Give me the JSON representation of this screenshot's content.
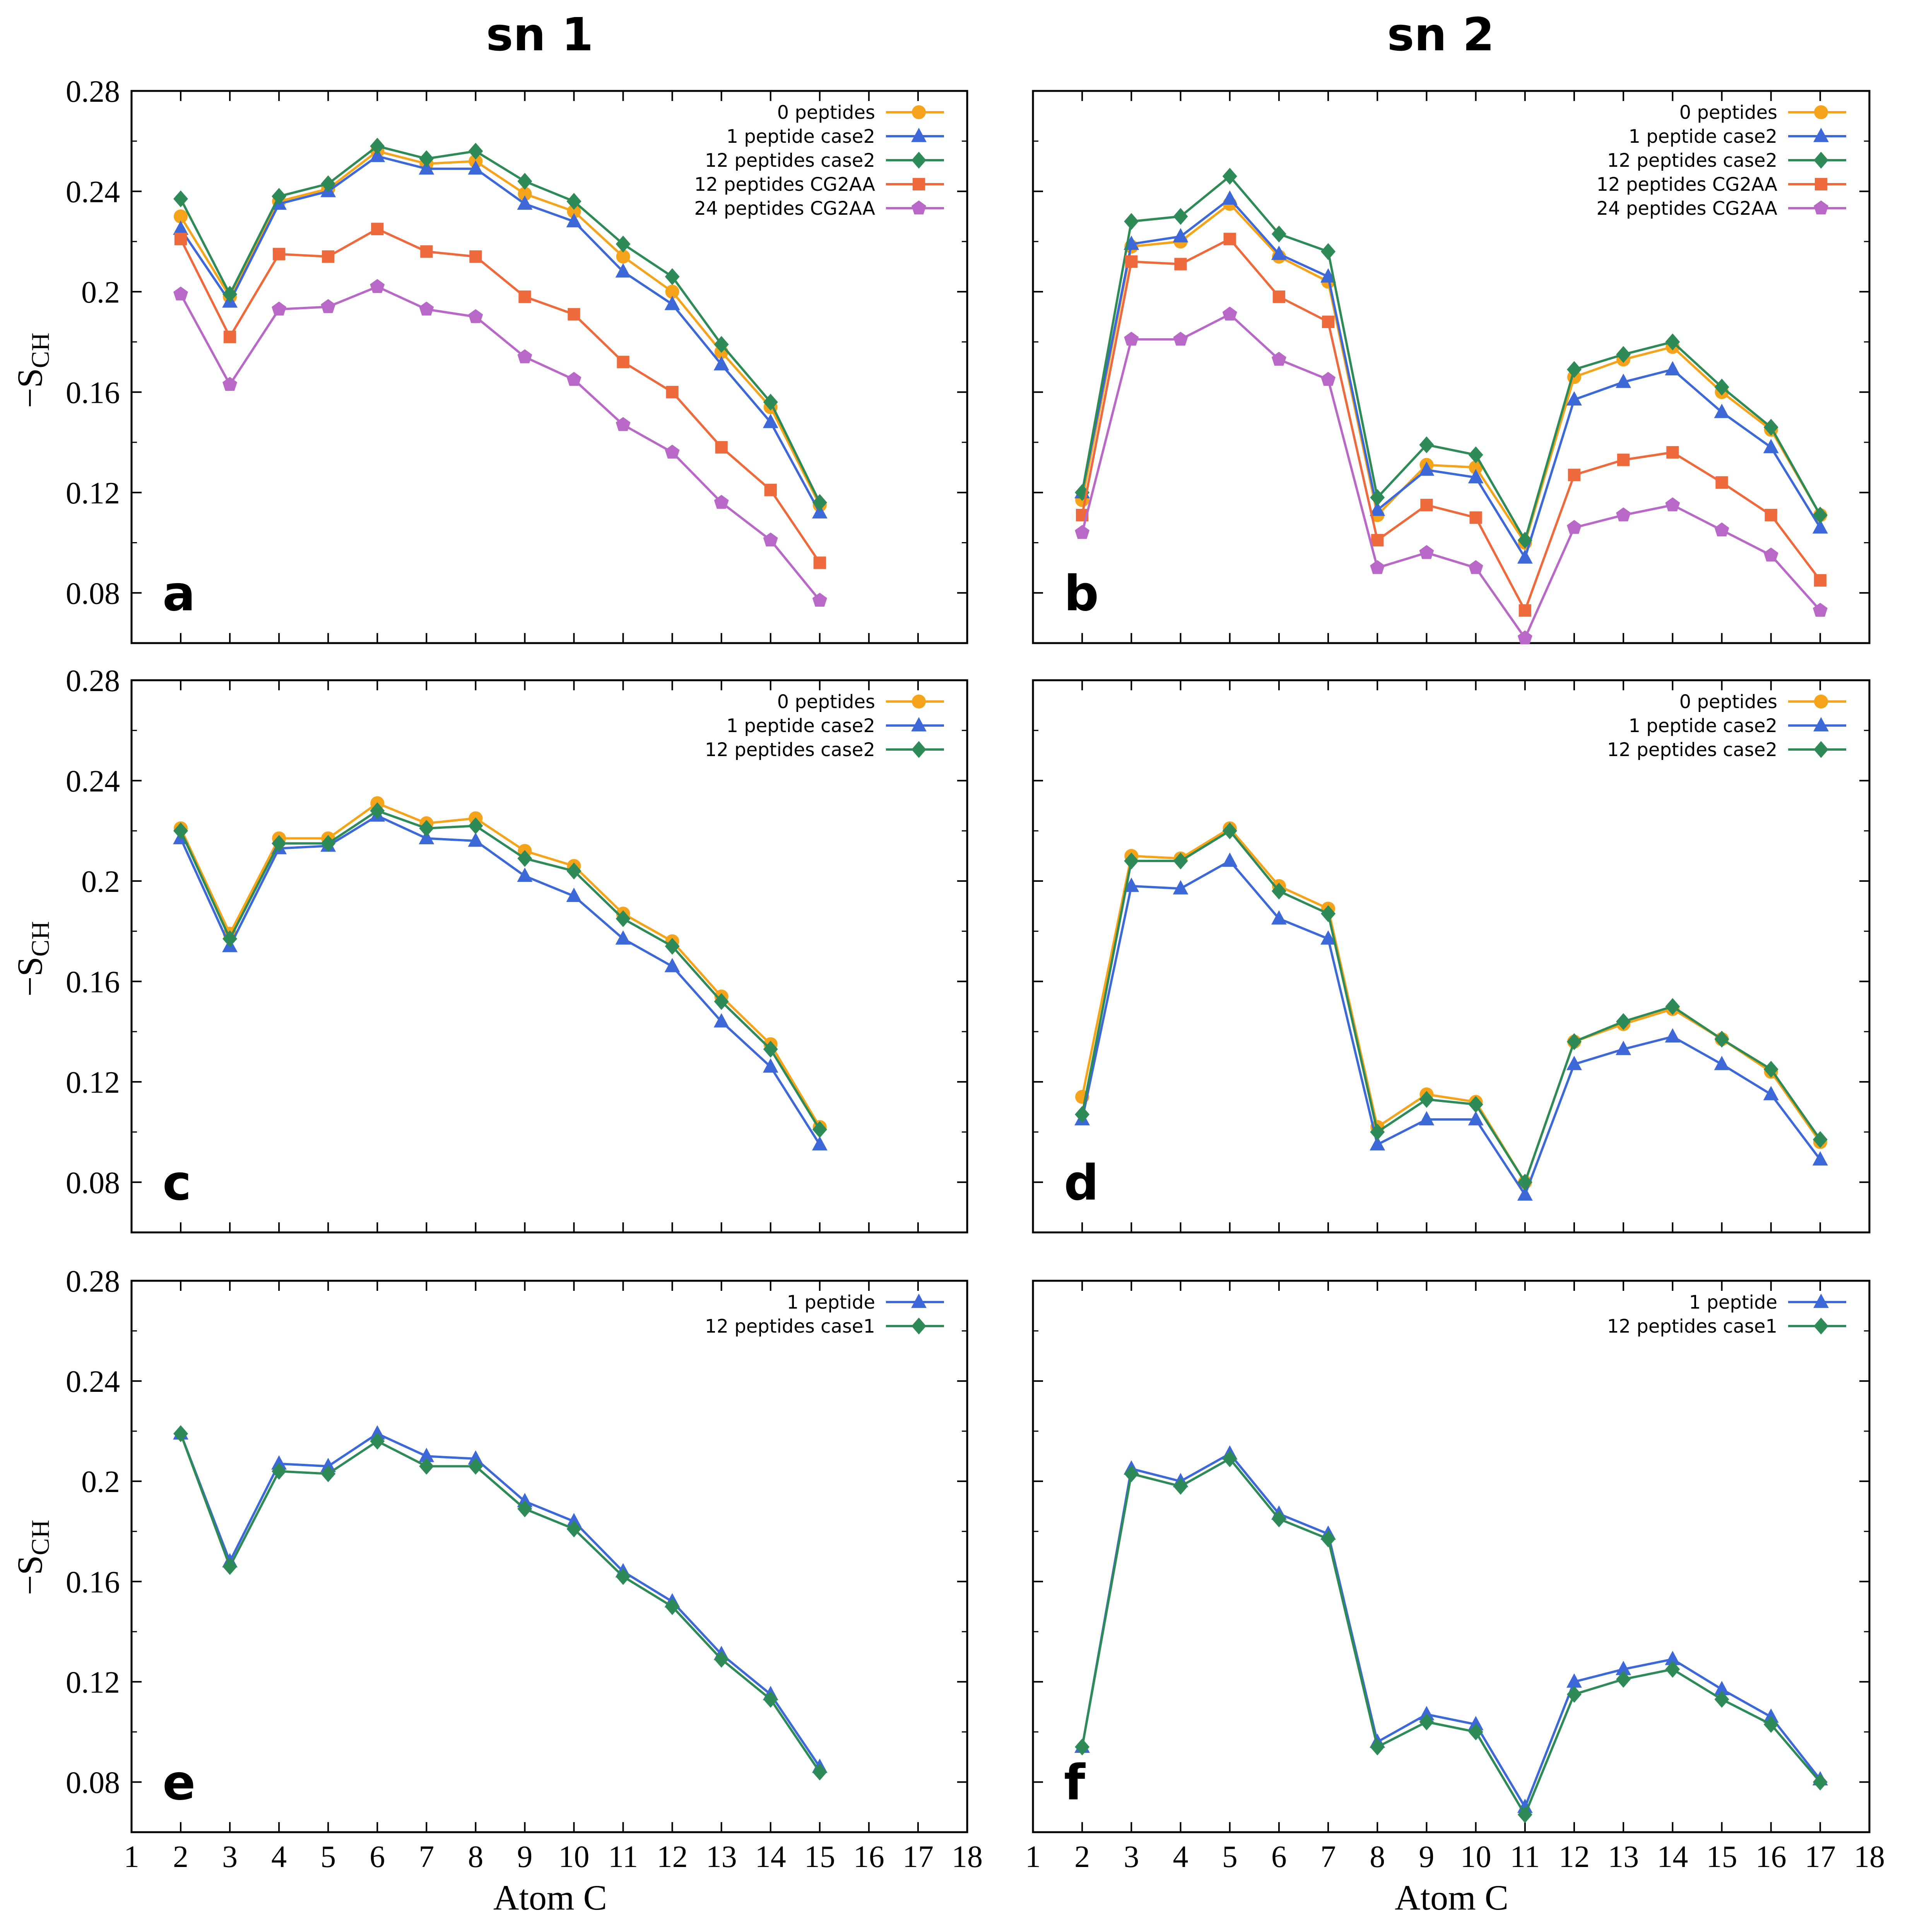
{
  "figure": {
    "column_titles": [
      "sn 1",
      "sn 2"
    ],
    "y_axis_label": "−S",
    "y_axis_label_sub": "CH",
    "x_axis_label": "Atom C",
    "colors": {
      "0 peptides": "#f5a31a",
      "1 peptide case2": "#3d68d8",
      "12 peptides case2": "#2e8b57",
      "12 peptides CG2AA": "#ee6a3d",
      "24 peptides CG2AA": "#b868c6",
      "1 peptide": "#3d68d8",
      "12 peptides case1": "#2e8b57"
    }
  },
  "chart_data": [
    {
      "panel": "a",
      "type": "line",
      "column": "sn 1",
      "xlim": [
        1,
        18
      ],
      "ylim": [
        0.06,
        0.28
      ],
      "xticks": [
        1,
        2,
        3,
        4,
        5,
        6,
        7,
        8,
        9,
        10,
        11,
        12,
        13,
        14,
        15,
        16,
        17,
        18
      ],
      "yticks": [
        "0.08",
        "0.12",
        "0.16",
        "0.2",
        "0.24",
        "0.28"
      ],
      "x": [
        2,
        3,
        4,
        5,
        6,
        7,
        8,
        9,
        10,
        11,
        12,
        13,
        14,
        15
      ],
      "series": [
        {
          "name": "0 peptides",
          "marker": "circle",
          "values": [
            0.23,
            0.198,
            0.236,
            0.241,
            0.256,
            0.251,
            0.252,
            0.239,
            0.232,
            0.214,
            0.2,
            0.176,
            0.154,
            0.115
          ]
        },
        {
          "name": "1 peptide case2",
          "marker": "triangle",
          "values": [
            0.225,
            0.196,
            0.235,
            0.24,
            0.254,
            0.249,
            0.249,
            0.235,
            0.228,
            0.208,
            0.195,
            0.171,
            0.148,
            0.112
          ]
        },
        {
          "name": "12 peptides case2",
          "marker": "diamond",
          "values": [
            0.237,
            0.199,
            0.238,
            0.243,
            0.258,
            0.253,
            0.256,
            0.244,
            0.236,
            0.219,
            0.206,
            0.179,
            0.156,
            0.116
          ]
        },
        {
          "name": "12 peptides CG2AA",
          "marker": "square",
          "values": [
            0.221,
            0.182,
            0.215,
            0.214,
            0.225,
            0.216,
            0.214,
            0.198,
            0.191,
            0.172,
            0.16,
            0.138,
            0.121,
            0.092
          ]
        },
        {
          "name": "24 peptides CG2AA",
          "marker": "pentagon",
          "values": [
            0.199,
            0.163,
            0.193,
            0.194,
            0.202,
            0.193,
            0.19,
            0.174,
            0.165,
            0.147,
            0.136,
            0.116,
            0.101,
            0.077
          ]
        }
      ]
    },
    {
      "panel": "b",
      "type": "line",
      "column": "sn 2",
      "xlim": [
        1,
        18
      ],
      "ylim": [
        0.06,
        0.28
      ],
      "xticks": [
        1,
        2,
        3,
        4,
        5,
        6,
        7,
        8,
        9,
        10,
        11,
        12,
        13,
        14,
        15,
        16,
        17,
        18
      ],
      "yticks": [
        "0.08",
        "0.12",
        "0.16",
        "0.2",
        "0.24",
        "0.28"
      ],
      "x": [
        2,
        3,
        4,
        5,
        6,
        7,
        8,
        9,
        10,
        11,
        12,
        13,
        14,
        15,
        16,
        17
      ],
      "series": [
        {
          "name": "0 peptides",
          "marker": "circle",
          "values": [
            0.117,
            0.218,
            0.22,
            0.235,
            0.214,
            0.204,
            0.111,
            0.131,
            0.13,
            0.1,
            0.166,
            0.173,
            0.178,
            0.16,
            0.145,
            0.111
          ]
        },
        {
          "name": "1 peptide case2",
          "marker": "triangle",
          "values": [
            0.12,
            0.219,
            0.222,
            0.237,
            0.215,
            0.206,
            0.113,
            0.129,
            0.126,
            0.094,
            0.157,
            0.164,
            0.169,
            0.152,
            0.138,
            0.106
          ]
        },
        {
          "name": "12 peptides case2",
          "marker": "diamond",
          "values": [
            0.12,
            0.228,
            0.23,
            0.246,
            0.223,
            0.216,
            0.118,
            0.139,
            0.135,
            0.101,
            0.169,
            0.175,
            0.18,
            0.162,
            0.146,
            0.111
          ]
        },
        {
          "name": "12 peptides CG2AA",
          "marker": "square",
          "values": [
            0.111,
            0.212,
            0.211,
            0.221,
            0.198,
            0.188,
            0.101,
            0.115,
            0.11,
            0.073,
            0.127,
            0.133,
            0.136,
            0.124,
            0.111,
            0.085
          ]
        },
        {
          "name": "24 peptides CG2AA",
          "marker": "pentagon",
          "values": [
            0.104,
            0.181,
            0.181,
            0.191,
            0.173,
            0.165,
            0.09,
            0.096,
            0.09,
            0.062,
            0.106,
            0.111,
            0.115,
            0.105,
            0.095,
            0.073
          ]
        }
      ]
    },
    {
      "panel": "c",
      "type": "line",
      "column": "sn 1",
      "xlim": [
        1,
        18
      ],
      "ylim": [
        0.06,
        0.28
      ],
      "xticks": [
        1,
        2,
        3,
        4,
        5,
        6,
        7,
        8,
        9,
        10,
        11,
        12,
        13,
        14,
        15,
        16,
        17,
        18
      ],
      "yticks": [
        "0.08",
        "0.12",
        "0.16",
        "0.2",
        "0.24",
        "0.28"
      ],
      "x": [
        2,
        3,
        4,
        5,
        6,
        7,
        8,
        9,
        10,
        11,
        12,
        13,
        14,
        15
      ],
      "series": [
        {
          "name": "0 peptides",
          "marker": "circle",
          "values": [
            0.221,
            0.179,
            0.217,
            0.217,
            0.231,
            0.223,
            0.225,
            0.212,
            0.206,
            0.187,
            0.176,
            0.154,
            0.135,
            0.102
          ]
        },
        {
          "name": "1 peptide case2",
          "marker": "triangle",
          "values": [
            0.217,
            0.174,
            0.213,
            0.214,
            0.226,
            0.217,
            0.216,
            0.202,
            0.194,
            0.177,
            0.166,
            0.144,
            0.126,
            0.095
          ]
        },
        {
          "name": "12 peptides case2",
          "marker": "diamond",
          "values": [
            0.22,
            0.177,
            0.215,
            0.215,
            0.228,
            0.221,
            0.222,
            0.209,
            0.204,
            0.185,
            0.174,
            0.152,
            0.133,
            0.101
          ]
        }
      ]
    },
    {
      "panel": "d",
      "type": "line",
      "column": "sn 2",
      "xlim": [
        1,
        18
      ],
      "ylim": [
        0.06,
        0.28
      ],
      "xticks": [
        1,
        2,
        3,
        4,
        5,
        6,
        7,
        8,
        9,
        10,
        11,
        12,
        13,
        14,
        15,
        16,
        17,
        18
      ],
      "yticks": [
        "0.08",
        "0.12",
        "0.16",
        "0.2",
        "0.24",
        "0.28"
      ],
      "x": [
        2,
        3,
        4,
        5,
        6,
        7,
        8,
        9,
        10,
        11,
        12,
        13,
        14,
        15,
        16,
        17
      ],
      "series": [
        {
          "name": "0 peptides",
          "marker": "circle",
          "values": [
            0.114,
            0.21,
            0.209,
            0.221,
            0.198,
            0.189,
            0.102,
            0.115,
            0.112,
            0.08,
            0.136,
            0.143,
            0.149,
            0.137,
            0.124,
            0.096
          ]
        },
        {
          "name": "1 peptide case2",
          "marker": "triangle",
          "values": [
            0.105,
            0.198,
            0.197,
            0.208,
            0.185,
            0.177,
            0.095,
            0.105,
            0.105,
            0.075,
            0.127,
            0.133,
            0.138,
            0.127,
            0.115,
            0.089
          ]
        },
        {
          "name": "12 peptides case2",
          "marker": "diamond",
          "values": [
            0.107,
            0.208,
            0.208,
            0.22,
            0.196,
            0.187,
            0.1,
            0.113,
            0.111,
            0.08,
            0.136,
            0.144,
            0.15,
            0.137,
            0.125,
            0.097
          ]
        }
      ]
    },
    {
      "panel": "e",
      "type": "line",
      "column": "sn 1",
      "xlim": [
        1,
        18
      ],
      "ylim": [
        0.06,
        0.28
      ],
      "xticks": [
        1,
        2,
        3,
        4,
        5,
        6,
        7,
        8,
        9,
        10,
        11,
        12,
        13,
        14,
        15,
        16,
        17,
        18
      ],
      "yticks": [
        "0.08",
        "0.12",
        "0.16",
        "0.2",
        "0.24",
        "0.28"
      ],
      "x": [
        2,
        3,
        4,
        5,
        6,
        7,
        8,
        9,
        10,
        11,
        12,
        13,
        14,
        15
      ],
      "series": [
        {
          "name": "1 peptide",
          "marker": "triangle",
          "values": [
            0.219,
            0.168,
            0.207,
            0.206,
            0.219,
            0.21,
            0.209,
            0.192,
            0.184,
            0.164,
            0.152,
            0.131,
            0.115,
            0.086
          ]
        },
        {
          "name": "12 peptides case1",
          "marker": "diamond",
          "values": [
            0.219,
            0.166,
            0.204,
            0.203,
            0.216,
            0.206,
            0.206,
            0.189,
            0.181,
            0.162,
            0.15,
            0.129,
            0.113,
            0.084
          ]
        }
      ]
    },
    {
      "panel": "f",
      "type": "line",
      "column": "sn 2",
      "xlim": [
        1,
        18
      ],
      "ylim": [
        0.06,
        0.28
      ],
      "xticks": [
        1,
        2,
        3,
        4,
        5,
        6,
        7,
        8,
        9,
        10,
        11,
        12,
        13,
        14,
        15,
        16,
        17,
        18
      ],
      "yticks": [
        "0.08",
        "0.12",
        "0.16",
        "0.2",
        "0.24",
        "0.28"
      ],
      "x": [
        2,
        3,
        4,
        5,
        6,
        7,
        8,
        9,
        10,
        11,
        12,
        13,
        14,
        15,
        16,
        17
      ],
      "series": [
        {
          "name": "1 peptide",
          "marker": "triangle",
          "values": [
            0.094,
            0.205,
            0.2,
            0.211,
            0.187,
            0.179,
            0.096,
            0.107,
            0.103,
            0.07,
            0.12,
            0.125,
            0.129,
            0.117,
            0.106,
            0.081
          ]
        },
        {
          "name": "12 peptides case1",
          "marker": "diamond",
          "values": [
            0.094,
            0.203,
            0.198,
            0.209,
            0.185,
            0.177,
            0.094,
            0.104,
            0.1,
            0.067,
            0.115,
            0.121,
            0.125,
            0.113,
            0.103,
            0.08
          ]
        }
      ]
    }
  ]
}
